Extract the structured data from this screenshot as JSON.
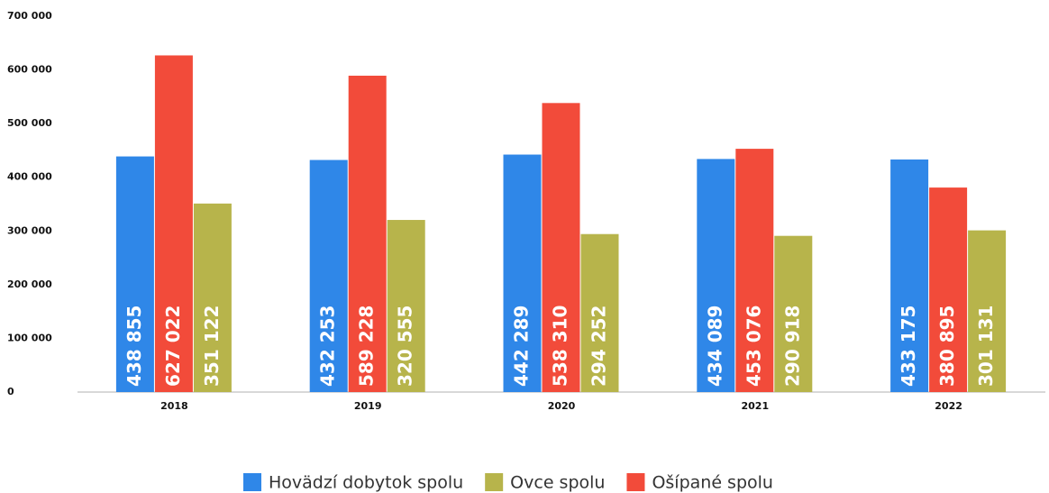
{
  "chart_data": {
    "type": "bar",
    "categories": [
      "2018",
      "2019",
      "2020",
      "2021",
      "2022"
    ],
    "series": [
      {
        "name": "Hovädzí dobytok spolu",
        "color": "#2f87e8",
        "values": [
          438855,
          432253,
          442289,
          434089,
          433175
        ],
        "value_labels": [
          "438 855",
          "432 253",
          "442 289",
          "434 089",
          "433 175"
        ]
      },
      {
        "name": "Ovce spolu",
        "color": "#b7b44b",
        "values": [
          351122,
          320555,
          294252,
          290918,
          301131
        ],
        "value_labels": [
          "351 122",
          "320 555",
          "294 252",
          "290 918",
          "301 131"
        ]
      },
      {
        "name": "Ošípané spolu",
        "color": "#f24b3a",
        "values": [
          627022,
          589228,
          538310,
          453076,
          380895
        ],
        "value_labels": [
          "627 022",
          "589 228",
          "538 310",
          "453 076",
          "380 895"
        ]
      }
    ],
    "ylim": [
      0,
      700000
    ],
    "yticks": [
      {
        "value": 0,
        "label": "0"
      },
      {
        "value": 100000,
        "label": "100 000"
      },
      {
        "value": 200000,
        "label": "200 000"
      },
      {
        "value": 300000,
        "label": "300 000"
      },
      {
        "value": 400000,
        "label": "400 000"
      },
      {
        "value": 500000,
        "label": "500 000"
      },
      {
        "value": 600000,
        "label": "600 000"
      },
      {
        "value": 700000,
        "label": "700 000"
      }
    ],
    "legend": "bottom"
  }
}
